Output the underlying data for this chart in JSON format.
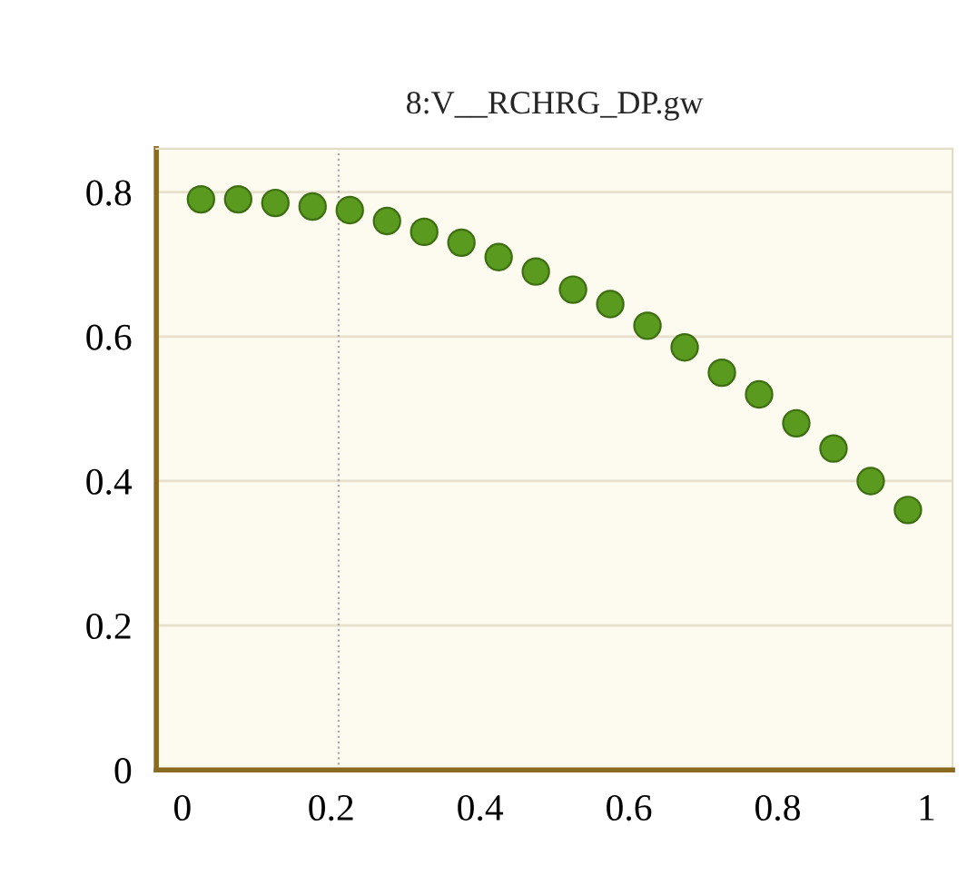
{
  "chart_data": {
    "type": "scatter",
    "title": "8:V__RCHRG_DP.gw",
    "x": [
      0.025,
      0.075,
      0.125,
      0.175,
      0.225,
      0.275,
      0.325,
      0.375,
      0.425,
      0.475,
      0.525,
      0.575,
      0.625,
      0.675,
      0.725,
      0.775,
      0.825,
      0.875,
      0.925,
      0.975
    ],
    "series": [
      {
        "color": "#5a9a1e",
        "values": [
          0.79,
          0.79,
          0.785,
          0.78,
          0.775,
          0.76,
          0.745,
          0.73,
          0.71,
          0.69,
          0.665,
          0.645,
          0.615,
          0.585,
          0.55,
          0.52,
          0.48,
          0.445,
          0.4,
          0.36
        ]
      }
    ],
    "xlim": [
      -0.035,
      1.035
    ],
    "ylim": [
      0,
      0.86
    ],
    "xticks": [
      0,
      0.2,
      0.4,
      0.6,
      0.8,
      1
    ],
    "yticks": [
      0,
      0.2,
      0.4,
      0.6,
      0.8
    ],
    "ref_lines": [
      {
        "axis": "x",
        "value": 0.21,
        "color": "#aaaaaa",
        "line_style": "dotted"
      }
    ],
    "grid": "y",
    "marker": "circle",
    "legend": false
  }
}
